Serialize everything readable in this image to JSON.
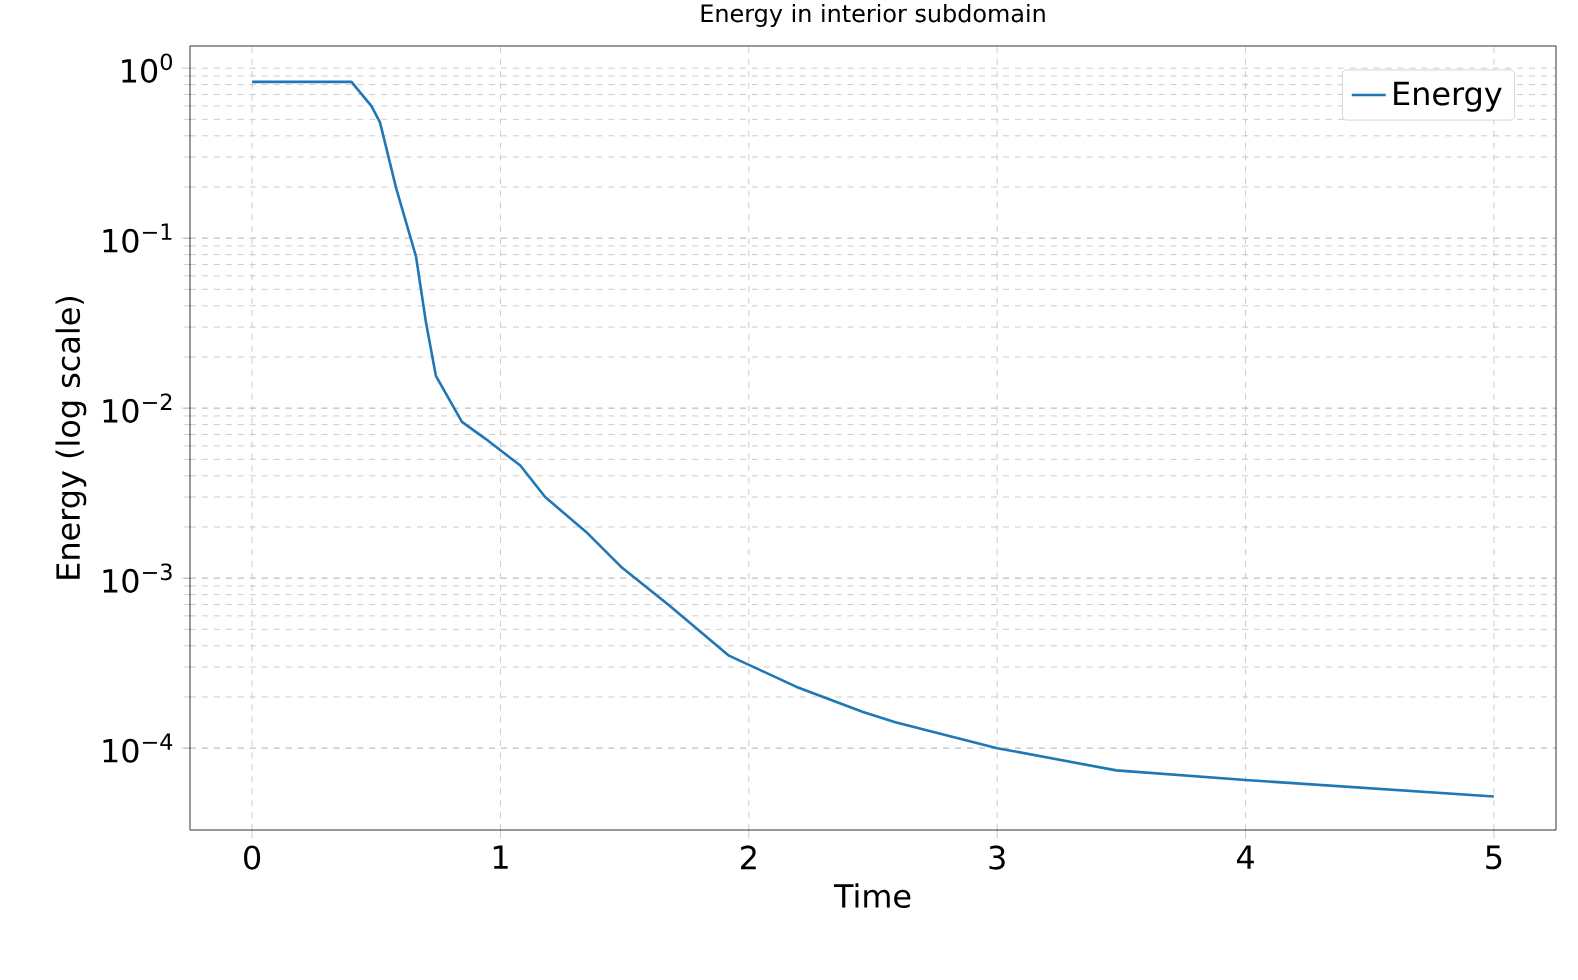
{
  "chart_data": {
    "type": "line",
    "title": "Energy in interior subdomain",
    "xlabel": "Time",
    "ylabel": "Energy (log scale)",
    "log": "y",
    "grid": true,
    "legend": "top right",
    "xlim": [
      -0.25,
      5.25
    ],
    "xticks": [
      0,
      1,
      2,
      3,
      4,
      5
    ],
    "ylim": [
      3.3e-05,
      1.35
    ],
    "yticks": [
      {
        "value": 0.0001,
        "label": "10$^{−4}$"
      },
      {
        "value": 0.001,
        "label": "10$^{−3}$"
      },
      {
        "value": 0.01,
        "label": "10$^{−2}$"
      },
      {
        "value": 0.1,
        "label": "10$^{−1}$"
      },
      {
        "value": 1,
        "label": "10$^{0}$"
      }
    ],
    "series": [
      {
        "name": "Energy",
        "color": "#1f77b4",
        "x": [
          0,
          0.4,
          0.48,
          0.515,
          0.58,
          0.66,
          0.7,
          0.74,
          0.845,
          0.94,
          1.08,
          1.18,
          1.345,
          1.49,
          1.68,
          1.92,
          2.19,
          2.46,
          2.59,
          3.0,
          3.48,
          4.0,
          5.0
        ],
        "values": [
          0.83,
          0.83,
          0.6,
          0.48,
          0.197,
          0.078,
          0.032,
          0.0155,
          0.0083,
          0.0066,
          0.0046,
          0.003,
          0.00187,
          0.00115,
          0.00069,
          0.00035,
          0.00023,
          0.000163,
          0.000142,
          0.0001,
          7.4e-05,
          6.5e-05,
          5.2e-05
        ]
      }
    ]
  }
}
